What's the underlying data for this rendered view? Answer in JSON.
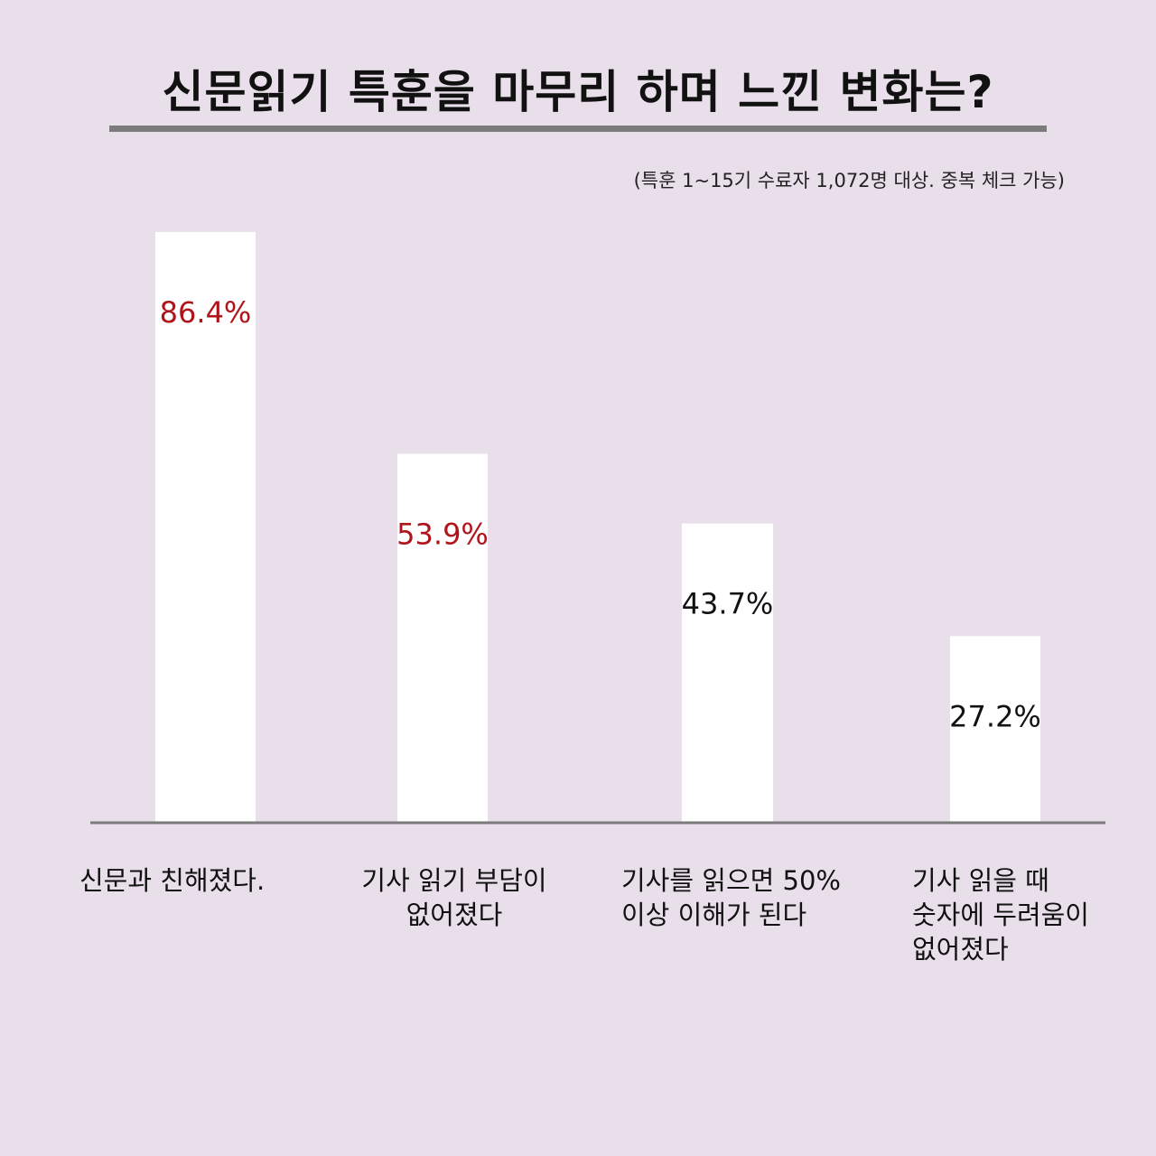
{
  "chart_data": {
    "type": "bar",
    "title": "신문읽기 특훈을 마무리 하며 느낀 변화는?",
    "subtitle": "(특훈 1~15기 수료자 1,072명 대상. 중복 체크 가능)",
    "categories": [
      "신문과 친해졌다.",
      "기사 읽기 부담이 없어졌다",
      "기사를 읽으면 50% 이상 이해가 된다",
      "기사 읽을 때 숫자에 두려움이 없어졌다"
    ],
    "category_lines": [
      [
        "신문과 친해졌다."
      ],
      [
        "기사 읽기 부담이",
        "없어졌다"
      ],
      [
        "기사를 읽으면 50%",
        "이상 이해가 된다"
      ],
      [
        "기사 읽을 때",
        "숫자에 두려움이",
        "없어졌다"
      ]
    ],
    "values": [
      86.4,
      53.9,
      43.7,
      27.2
    ],
    "data_labels": [
      "86.4%",
      "53.9%",
      "43.7%",
      "27.2%"
    ],
    "ylim": [
      0,
      100
    ],
    "xlabel": "",
    "ylabel": "",
    "grid": false,
    "colors": {
      "background": "#e9dfea",
      "bar": "#ffffff",
      "axis": "#7b7b7b",
      "highlight_label": "#b0141b",
      "normal_label": "#111111"
    },
    "label_highlight": [
      true,
      true,
      false,
      false
    ]
  }
}
